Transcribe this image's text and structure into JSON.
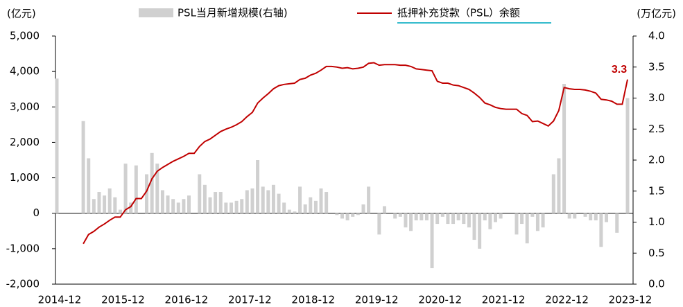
{
  "chart_data": {
    "type": "bar-line",
    "y_unit": "(亿元)",
    "y2_unit": "(万亿元)",
    "categories": [
      "2014-12",
      null,
      null,
      null,
      null,
      null,
      null,
      null,
      null,
      null,
      null,
      null,
      "2015-12",
      null,
      null,
      null,
      null,
      null,
      null,
      null,
      null,
      null,
      null,
      null,
      "2016-12",
      null,
      null,
      null,
      null,
      null,
      null,
      null,
      null,
      null,
      null,
      null,
      "2017-12",
      null,
      null,
      null,
      null,
      null,
      null,
      null,
      null,
      null,
      null,
      null,
      "2018-12",
      null,
      null,
      null,
      null,
      null,
      null,
      null,
      null,
      null,
      null,
      null,
      "2019-12",
      null,
      null,
      null,
      null,
      null,
      null,
      null,
      null,
      null,
      null,
      null,
      "2020-12",
      null,
      null,
      null,
      null,
      null,
      null,
      null,
      null,
      null,
      null,
      null,
      "2021-12",
      null,
      null,
      null,
      null,
      null,
      null,
      null,
      null,
      null,
      null,
      null,
      "2022-12",
      null,
      null,
      null,
      null,
      null,
      null,
      null,
      null,
      null,
      null,
      null,
      "2023-12"
    ],
    "series": [
      {
        "name": "PSL当月新增规模(右轴)",
        "type": "bar",
        "color": "#d0d0d0",
        "values": [
          3800,
          0,
          0,
          0,
          0,
          2600,
          1550,
          400,
          600,
          500,
          700,
          450,
          100,
          1400,
          300,
          1350,
          0,
          1100,
          1700,
          1400,
          650,
          500,
          400,
          300,
          400,
          500,
          0,
          1100,
          800,
          450,
          600,
          600,
          300,
          300,
          350,
          400,
          650,
          700,
          1500,
          750,
          650,
          800,
          550,
          300,
          100,
          50,
          750,
          250,
          450,
          350,
          700,
          600,
          0,
          -50,
          -150,
          -200,
          -100,
          -50,
          250,
          750,
          0,
          -600,
          200,
          0,
          -150,
          -100,
          -400,
          -500,
          -200,
          -200,
          -200,
          -1550,
          -300,
          -100,
          -300,
          -300,
          -200,
          -300,
          -400,
          -750,
          -1000,
          -200,
          -450,
          -250,
          -150,
          0,
          0,
          -600,
          -300,
          -850,
          -100,
          -500,
          -400,
          0,
          1100,
          1550,
          3650,
          -150,
          -150,
          0,
          -100,
          -200,
          -200,
          -950,
          -250,
          0,
          -550,
          0,
          3250
        ]
      },
      {
        "name": "抵押补充贷款（PSL）余额",
        "type": "line",
        "axis": "y2",
        "color": "#c00000",
        "values": [
          null,
          null,
          null,
          null,
          null,
          0.65,
          0.8,
          0.85,
          0.92,
          0.97,
          1.03,
          1.08,
          1.08,
          1.2,
          1.25,
          1.38,
          1.38,
          1.5,
          1.7,
          1.82,
          1.88,
          1.93,
          1.98,
          2.02,
          2.06,
          2.11,
          2.11,
          2.22,
          2.3,
          2.34,
          2.4,
          2.46,
          2.5,
          2.53,
          2.57,
          2.62,
          2.7,
          2.77,
          2.92,
          3.0,
          3.07,
          3.15,
          3.2,
          3.22,
          3.23,
          3.24,
          3.3,
          3.32,
          3.37,
          3.4,
          3.45,
          3.51,
          3.51,
          3.5,
          3.48,
          3.49,
          3.47,
          3.48,
          3.5,
          3.56,
          3.57,
          3.53,
          3.54,
          3.54,
          3.54,
          3.53,
          3.53,
          3.51,
          3.47,
          3.46,
          3.45,
          3.44,
          3.27,
          3.24,
          3.24,
          3.21,
          3.2,
          3.17,
          3.14,
          3.08,
          3.01,
          2.92,
          2.89,
          2.85,
          2.83,
          2.82,
          2.82,
          2.82,
          2.75,
          2.72,
          2.62,
          2.63,
          2.59,
          2.55,
          2.63,
          2.8,
          3.17,
          3.15,
          3.14,
          3.14,
          3.13,
          3.11,
          3.08,
          2.98,
          2.97,
          2.95,
          2.9,
          2.9,
          3.3
        ]
      }
    ],
    "ylim": [
      -2000,
      5000
    ],
    "yticks": [
      {
        "value": -2000,
        "label": "-2,000"
      },
      {
        "value": -1000,
        "label": "-1,000"
      },
      0,
      {
        "value": 1000,
        "label": "1,000"
      },
      {
        "value": 2000,
        "label": "2,000"
      },
      {
        "value": 3000,
        "label": "3,000"
      },
      {
        "value": 4000,
        "label": "4,000"
      },
      {
        "value": 5000,
        "label": "5,000"
      }
    ],
    "y2lim": [
      0,
      4
    ],
    "y2ticks": [
      {
        "value": 0,
        "label": "0.0"
      },
      {
        "value": 0.5,
        "label": "0.5"
      },
      {
        "value": 1,
        "label": "1.0"
      },
      {
        "value": 1.5,
        "label": "1.5"
      },
      {
        "value": 2,
        "label": "2.0"
      },
      {
        "value": 2.5,
        "label": "2.5"
      },
      {
        "value": 3,
        "label": "3.0"
      },
      {
        "value": 3.5,
        "label": "3.5"
      },
      {
        "value": 4,
        "label": "4.0"
      }
    ],
    "grid": false
  }
}
